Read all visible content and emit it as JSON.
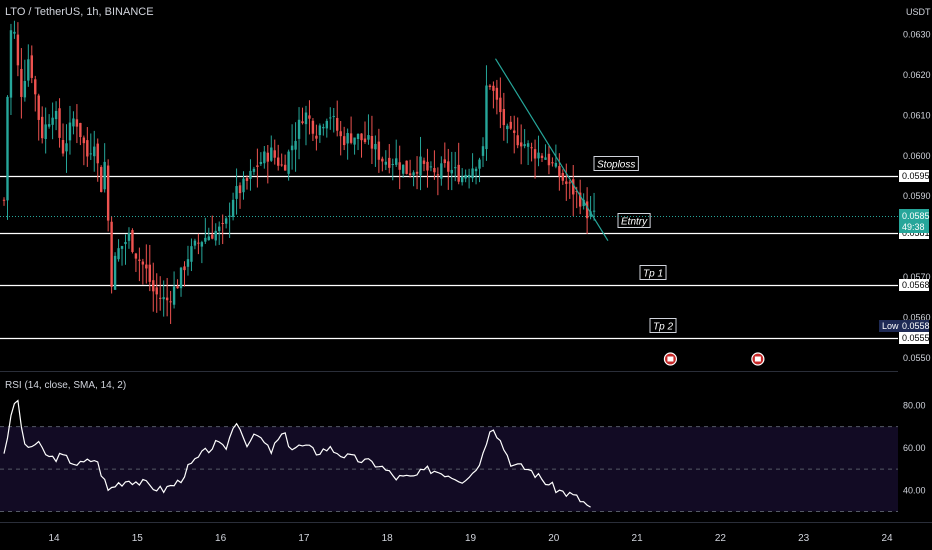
{
  "header": {
    "symbol_title": "LTO / TetherUS, 1h, BINANCE",
    "currency": "USDT"
  },
  "price_axis": {
    "ticks": [
      "0.0630",
      "0.0620",
      "0.0610",
      "0.0600",
      "0.0590",
      "0.0570",
      "0.0560",
      "0.0550"
    ],
    "tick_values": [
      0.063,
      0.062,
      0.061,
      0.06,
      0.059,
      0.057,
      0.056,
      0.055
    ],
    "ylim": [
      0.05468,
      0.06385
    ]
  },
  "levels": [
    {
      "name": "stoploss-line",
      "value": 0.0595,
      "tag": "0.0595",
      "annotation": "Stoploss"
    },
    {
      "name": "entry-line",
      "value": 0.0581,
      "tag": "0.0581",
      "annotation": "Etntry"
    },
    {
      "name": "tp1-line",
      "value": 0.0568,
      "tag": "0.0568",
      "annotation": "Tp 1"
    },
    {
      "name": "tp2-line",
      "value": 0.0555,
      "tag": "0.0555",
      "annotation": "Tp 2"
    }
  ],
  "current_price": {
    "price": "0.0585",
    "countdown": "49:38",
    "value": 0.0585,
    "color": "#26a69a"
  },
  "low_marker": {
    "label": "Low",
    "price": "0.0558",
    "value": 0.0558
  },
  "date_axis": {
    "labels": [
      "14",
      "15",
      "16",
      "17",
      "18",
      "19",
      "20",
      "21",
      "22",
      "23",
      "24"
    ],
    "values": [
      14,
      15,
      16,
      17,
      18,
      19,
      20,
      21,
      22,
      23,
      24
    ]
  },
  "rsi": {
    "title": "RSI (14, close, SMA, 14, 2)",
    "ticks": [
      "80.00",
      "60.00",
      "40.00"
    ],
    "tick_values": [
      80,
      60,
      40
    ],
    "band": [
      30,
      70
    ],
    "ylim": [
      26,
      92
    ]
  },
  "colors": {
    "up": "#26a69a",
    "down": "#ef5350",
    "line": "#ffffff",
    "band_fill": "#120b24"
  },
  "event_icons": [
    "earnings-flag-icon",
    "earnings-flag-icon"
  ],
  "chart_data": {
    "type": "candlestick",
    "title": "LTO / TetherUS, 1h, BINANCE",
    "x_unit": "day of month",
    "x_start": 13.4,
    "x_end": 20.5,
    "close_keypoints": [
      [
        13.38,
        0.0582
      ],
      [
        13.42,
        0.0596
      ],
      [
        13.45,
        0.0622
      ],
      [
        13.5,
        0.0635
      ],
      [
        13.6,
        0.0615
      ],
      [
        13.7,
        0.0625
      ],
      [
        13.85,
        0.0605
      ],
      [
        14.0,
        0.0612
      ],
      [
        14.1,
        0.0601
      ],
      [
        14.25,
        0.061
      ],
      [
        14.4,
        0.06
      ],
      [
        14.5,
        0.0605
      ],
      [
        14.55,
        0.059
      ],
      [
        14.62,
        0.06
      ],
      [
        14.68,
        0.0568
      ],
      [
        14.75,
        0.0576
      ],
      [
        14.9,
        0.058
      ],
      [
        15.0,
        0.0575
      ],
      [
        15.1,
        0.0572
      ],
      [
        15.2,
        0.0566
      ],
      [
        15.35,
        0.0564
      ],
      [
        15.5,
        0.0569
      ],
      [
        15.6,
        0.0575
      ],
      [
        15.75,
        0.0579
      ],
      [
        15.9,
        0.0581
      ],
      [
        16.05,
        0.0582
      ],
      [
        16.15,
        0.059
      ],
      [
        16.3,
        0.0593
      ],
      [
        16.45,
        0.0598
      ],
      [
        16.6,
        0.0601
      ],
      [
        16.75,
        0.0597
      ],
      [
        16.9,
        0.0605
      ],
      [
        17.0,
        0.0611
      ],
      [
        17.15,
        0.0606
      ],
      [
        17.3,
        0.0611
      ],
      [
        17.45,
        0.0604
      ],
      [
        17.6,
        0.0605
      ],
      [
        17.8,
        0.0603
      ],
      [
        17.95,
        0.0599
      ],
      [
        18.1,
        0.0599
      ],
      [
        18.25,
        0.0596
      ],
      [
        18.4,
        0.0598
      ],
      [
        18.55,
        0.0595
      ],
      [
        18.7,
        0.0597
      ],
      [
        18.9,
        0.0595
      ],
      [
        19.05,
        0.0598
      ],
      [
        19.15,
        0.0601
      ],
      [
        19.2,
        0.062
      ],
      [
        19.3,
        0.0614
      ],
      [
        19.45,
        0.0605
      ],
      [
        19.6,
        0.0604
      ],
      [
        19.75,
        0.0601
      ],
      [
        19.9,
        0.06
      ],
      [
        20.0,
        0.0597
      ],
      [
        20.15,
        0.0593
      ],
      [
        20.3,
        0.059
      ],
      [
        20.4,
        0.0586
      ],
      [
        20.45,
        0.0585
      ]
    ],
    "rsi_keypoints": [
      [
        13.4,
        58
      ],
      [
        13.55,
        86
      ],
      [
        13.65,
        60
      ],
      [
        13.8,
        62
      ],
      [
        13.95,
        55
      ],
      [
        14.1,
        56
      ],
      [
        14.3,
        52
      ],
      [
        14.5,
        55
      ],
      [
        14.65,
        40
      ],
      [
        14.75,
        43
      ],
      [
        14.9,
        45
      ],
      [
        15.1,
        43
      ],
      [
        15.3,
        40
      ],
      [
        15.5,
        44
      ],
      [
        15.6,
        50
      ],
      [
        15.75,
        56
      ],
      [
        15.95,
        62
      ],
      [
        16.05,
        59
      ],
      [
        16.2,
        74
      ],
      [
        16.3,
        62
      ],
      [
        16.45,
        66
      ],
      [
        16.6,
        58
      ],
      [
        16.75,
        67
      ],
      [
        16.85,
        60
      ],
      [
        17.0,
        61
      ],
      [
        17.15,
        58
      ],
      [
        17.3,
        60
      ],
      [
        17.5,
        56
      ],
      [
        17.7,
        54
      ],
      [
        17.9,
        52
      ],
      [
        18.1,
        46
      ],
      [
        18.3,
        46
      ],
      [
        18.5,
        50
      ],
      [
        18.7,
        48
      ],
      [
        18.9,
        45
      ],
      [
        19.05,
        49
      ],
      [
        19.15,
        57
      ],
      [
        19.25,
        72
      ],
      [
        19.35,
        64
      ],
      [
        19.5,
        52
      ],
      [
        19.7,
        50
      ],
      [
        19.9,
        44
      ],
      [
        20.05,
        40
      ],
      [
        20.2,
        38
      ],
      [
        20.3,
        36
      ],
      [
        20.4,
        33
      ],
      [
        20.45,
        31
      ]
    ],
    "trendline": {
      "from": [
        19.3,
        0.0624
      ],
      "to": [
        20.65,
        0.0579
      ]
    }
  }
}
